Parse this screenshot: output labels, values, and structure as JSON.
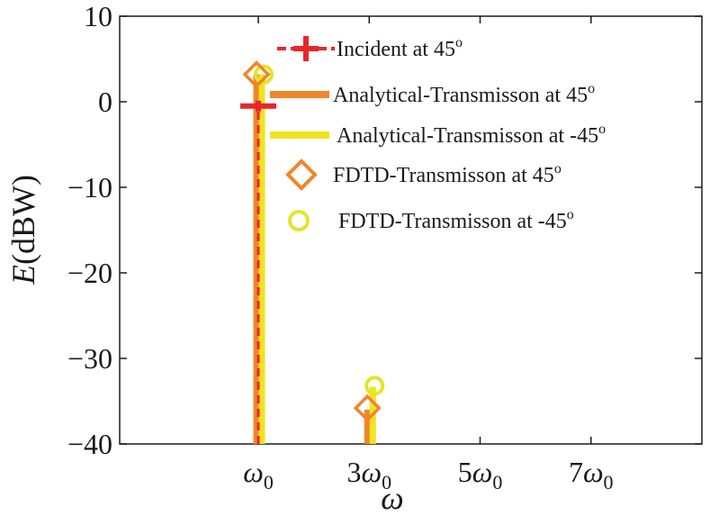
{
  "chart_data": {
    "type": "stem",
    "xlabel": "ω",
    "ylabel": "E(dBW)",
    "ylim": [
      -40,
      10
    ],
    "xlim": [
      -1.5,
      9
    ],
    "grid": false,
    "legend_placement": "top-right",
    "x_ticks": [
      {
        "value": 1,
        "label": "ω0"
      },
      {
        "value": 3,
        "label": "3ω0"
      },
      {
        "value": 5,
        "label": "5ω0"
      },
      {
        "value": 7,
        "label": "7ω0"
      }
    ],
    "y_ticks": [
      10,
      0,
      -10,
      -20,
      -30,
      -40
    ],
    "y_tick_labels": [
      "10",
      "0",
      "−10",
      "−20",
      "−30",
      "−40"
    ],
    "series": [
      {
        "name": "Incident at 45°",
        "style": "dashed-stem-plus-marker",
        "color": "#e8262a",
        "points": [
          {
            "x": 1,
            "y": -0.5
          }
        ]
      },
      {
        "name": "Analytical-Transmisson at 45°",
        "style": "thick-stem",
        "color": "#f0852a",
        "points": [
          {
            "x": 1,
            "y": 3.2
          },
          {
            "x": 3,
            "y": -36
          }
        ]
      },
      {
        "name": "Analytical-Transmisson at -45°",
        "style": "thick-stem",
        "color": "#f1e31f",
        "points": [
          {
            "x": 1,
            "y": 3.2
          },
          {
            "x": 3,
            "y": -33.3
          }
        ]
      },
      {
        "name": "FDTD-Transmisson at 45°",
        "style": "diamond-marker",
        "color": "#f0852a",
        "points": [
          {
            "x": 1,
            "y": 3.2
          },
          {
            "x": 3,
            "y": -35.8
          }
        ]
      },
      {
        "name": "FDTD-Transmisson at -45°",
        "style": "circle-marker",
        "color": "#e7e32a",
        "points": [
          {
            "x": 1,
            "y": 3.2
          },
          {
            "x": 3,
            "y": -33.2
          }
        ]
      }
    ],
    "legend": [
      {
        "text": "Incident at 45",
        "sup": "o"
      },
      {
        "text": "Analytical-Transmisson at 45",
        "sup": "o"
      },
      {
        "text": "Analytical-Transmisson at -45",
        "sup": "o"
      },
      {
        "text": "FDTD-Transmisson at 45",
        "sup": "o"
      },
      {
        "text": "FDTD-Transmisson at -45",
        "sup": "o"
      }
    ]
  }
}
